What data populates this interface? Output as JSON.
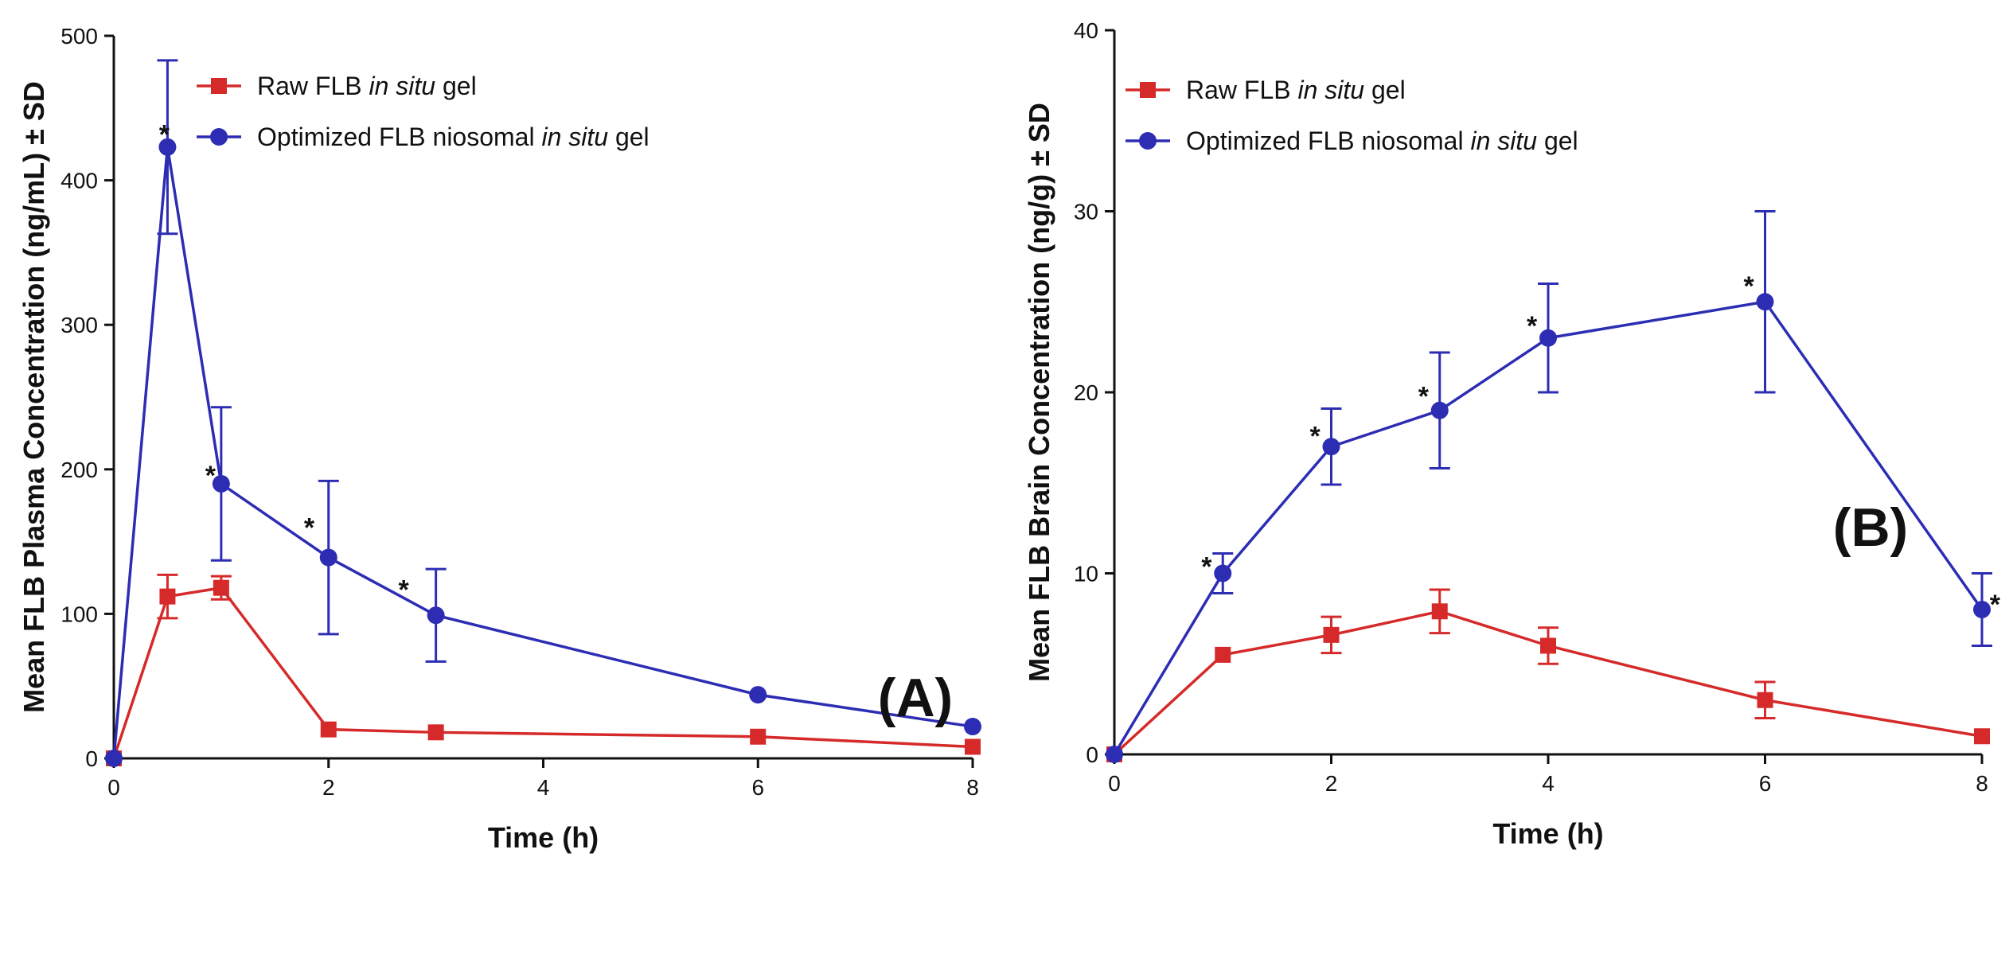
{
  "chart_data": [
    {
      "type": "line",
      "panel_label": "(A)",
      "xlabel": "Time (h)",
      "ylabel": "Mean FLB Plasma Concentration  (ng/mL) ± SD",
      "xlim": [
        0,
        8
      ],
      "ylim": [
        0,
        500
      ],
      "xticks": [
        0,
        2,
        4,
        6,
        8
      ],
      "yticks": [
        0,
        100,
        200,
        300,
        400,
        500
      ],
      "grid": false,
      "legend_position": "top-right",
      "series": [
        {
          "name": "Raw FLB in situ gel",
          "legend_parts": [
            "Raw FLB ",
            "in situ",
            " gel"
          ],
          "color": "#d62a2a",
          "marker": "square",
          "x": [
            0,
            0.5,
            1,
            2,
            3,
            6,
            8
          ],
          "y": [
            0,
            112,
            118,
            20,
            18,
            15,
            8
          ],
          "err": [
            0,
            15,
            8,
            0,
            0,
            0,
            0
          ]
        },
        {
          "name": "Optimized FLB niosomal in situ gel",
          "legend_parts": [
            "Optimized FLB niosomal ",
            "in situ",
            " gel"
          ],
          "color": "#2d2db4",
          "marker": "circle",
          "x": [
            0,
            0.5,
            1,
            2,
            3,
            6,
            8
          ],
          "y": [
            0,
            423,
            190,
            139,
            99,
            44,
            22
          ],
          "err": [
            0,
            60,
            53,
            53,
            32,
            0,
            0
          ]
        }
      ],
      "annotations": [
        {
          "text": "*",
          "x": 0.47,
          "y": 432
        },
        {
          "text": "*",
          "x": 0.9,
          "y": 196
        },
        {
          "text": "*",
          "x": 1.82,
          "y": 160
        },
        {
          "text": "*",
          "x": 2.7,
          "y": 117
        }
      ]
    },
    {
      "type": "line",
      "panel_label": "(B)",
      "xlabel": "Time (h)",
      "ylabel": "Mean FLB Brain Concentration  (ng/g) ± SD",
      "xlim": [
        0,
        8
      ],
      "ylim": [
        0,
        40
      ],
      "xticks": [
        0,
        2,
        4,
        6,
        8
      ],
      "yticks": [
        0,
        10,
        20,
        30,
        40
      ],
      "grid": false,
      "legend_position": "top-left",
      "series": [
        {
          "name": "Raw FLB in situ gel",
          "legend_parts": [
            "Raw FLB ",
            "in situ",
            " gel"
          ],
          "color": "#d62a2a",
          "marker": "square",
          "x": [
            0,
            1,
            2,
            3,
            4,
            6,
            8
          ],
          "y": [
            0,
            5.5,
            6.6,
            7.9,
            6,
            3,
            1
          ],
          "err": [
            0,
            0,
            1,
            1.2,
            1,
            1,
            0
          ]
        },
        {
          "name": "Optimized FLB niosomal in situ gel",
          "legend_parts": [
            "Optimized FLB niosomal ",
            "in situ",
            " gel"
          ],
          "color": "#2d2db4",
          "marker": "circle",
          "x": [
            0,
            1,
            2,
            3,
            4,
            6,
            8
          ],
          "y": [
            0,
            10,
            17,
            19,
            23,
            25,
            8
          ],
          "err": [
            0,
            1.1,
            2.1,
            3.2,
            3,
            5,
            2
          ]
        }
      ],
      "annotations": [
        {
          "text": "*",
          "x": 0.85,
          "y": 10.4
        },
        {
          "text": "*",
          "x": 1.85,
          "y": 17.6
        },
        {
          "text": "*",
          "x": 2.85,
          "y": 19.8
        },
        {
          "text": "*",
          "x": 3.85,
          "y": 23.7
        },
        {
          "text": "*",
          "x": 5.85,
          "y": 25.9
        },
        {
          "text": "*",
          "x": 8.12,
          "y": 8.3
        }
      ]
    }
  ]
}
